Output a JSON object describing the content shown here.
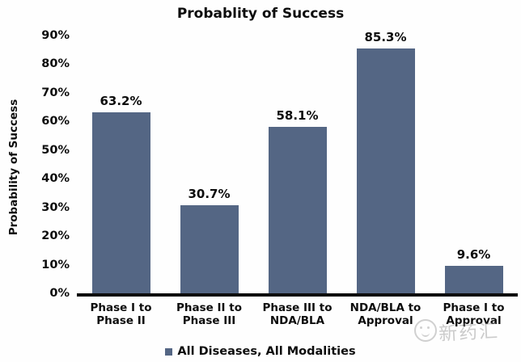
{
  "title": "Probablity of Success",
  "y_axis_title": "Probability of Success",
  "legend": {
    "label": "All Diseases, All Modalities",
    "swatch_color": "#546684"
  },
  "watermark": {
    "text": "新药汇"
  },
  "chart_data": {
    "type": "bar",
    "title": "Probablity of Success",
    "xlabel": "",
    "ylabel": "Probability of Success",
    "categories": [
      "Phase I to Phase II",
      "Phase II to Phase III",
      "Phase III to NDA/BLA",
      "NDA/BLA to Approval",
      "Phase I to Approval"
    ],
    "category_lines": [
      [
        "Phase I to",
        "Phase II"
      ],
      [
        "Phase II to",
        "Phase III"
      ],
      [
        "Phase III to",
        "NDA/BLA"
      ],
      [
        "NDA/BLA to",
        "Approval"
      ],
      [
        "Phase I to",
        "Approval"
      ]
    ],
    "values": [
      63.2,
      30.7,
      58.1,
      85.3,
      9.6
    ],
    "value_labels": [
      "63.2%",
      "30.7%",
      "58.1%",
      "85.3%",
      "9.6%"
    ],
    "yticks": [
      "0%",
      "10%",
      "20%",
      "30%",
      "40%",
      "50%",
      "60%",
      "70%",
      "80%",
      "90%"
    ],
    "ylim": [
      0,
      90
    ],
    "grid": false,
    "bar_color": "#546684",
    "legend_entries": [
      "All Diseases, All Modalities"
    ],
    "legend_position": "bottom"
  }
}
